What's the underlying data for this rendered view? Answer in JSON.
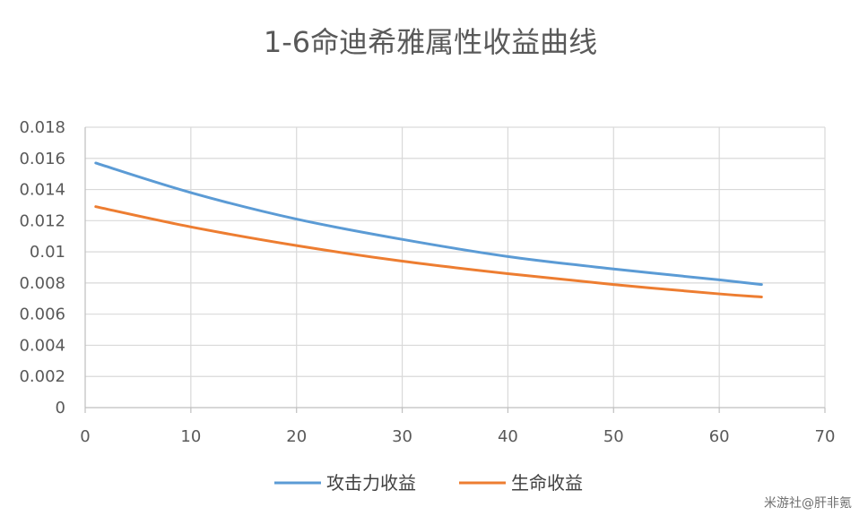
{
  "chart_data": {
    "type": "line",
    "title": "1-6命迪希雅属性收益曲线",
    "xlim": [
      0,
      70
    ],
    "ylim": [
      0,
      0.018
    ],
    "x_ticks": [
      0,
      10,
      20,
      30,
      40,
      50,
      60,
      70
    ],
    "y_ticks": [
      0,
      0.002,
      0.004,
      0.006,
      0.008,
      0.01,
      0.012,
      0.014,
      0.016,
      0.018
    ],
    "y_tick_labels": [
      "0",
      "0.002",
      "0.004",
      "0.006",
      "0.008",
      "0.01",
      "0.012",
      "0.014",
      "0.016",
      "0.018"
    ],
    "grid": true,
    "legend_position": "bottom",
    "series": [
      {
        "name": "攻击力收益",
        "color": "#5b9bd5",
        "x": [
          1,
          10,
          20,
          30,
          40,
          50,
          60,
          64
        ],
        "y": [
          0.0157,
          0.0138,
          0.0121,
          0.0108,
          0.0097,
          0.0089,
          0.0082,
          0.0079
        ]
      },
      {
        "name": "生命收益",
        "color": "#ed7d31",
        "x": [
          1,
          10,
          20,
          30,
          40,
          50,
          60,
          64
        ],
        "y": [
          0.0129,
          0.0116,
          0.0104,
          0.0094,
          0.0086,
          0.0079,
          0.0073,
          0.0071
        ]
      }
    ]
  },
  "watermark": "米游社@肝非氪"
}
